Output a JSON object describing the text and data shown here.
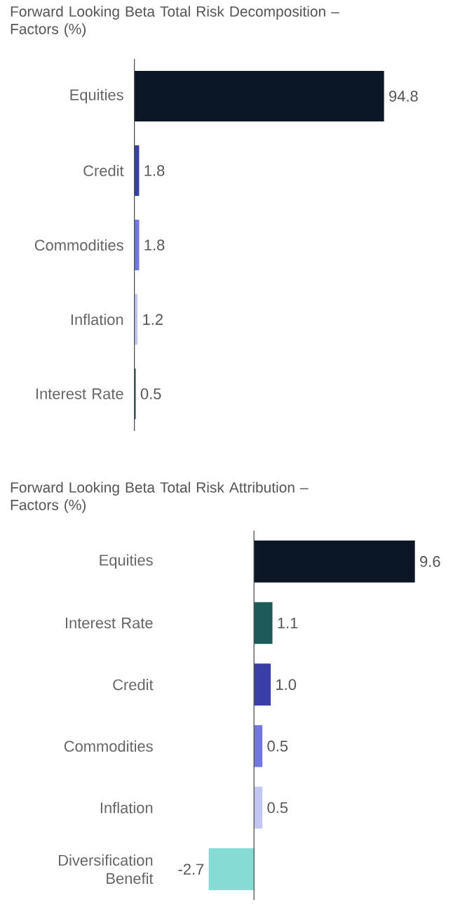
{
  "chart_data": [
    {
      "type": "bar",
      "title": "Forward Looking Beta Total Risk Decomposition – Factors (%)",
      "orientation": "horizontal",
      "tick_labels": "y",
      "value_labels": [
        "94.8",
        "1.8",
        "1.8",
        "1.2",
        "0.5"
      ],
      "categories": [
        "Equities",
        "Credit",
        "Commodities",
        "Inflation",
        "Interest Rate"
      ],
      "values": [
        94.8,
        1.8,
        1.8,
        1.2,
        0.5
      ],
      "colors": [
        "#0b1726",
        "#3a3fa6",
        "#7377e0",
        "#c3c6f3",
        "#1e5a5a"
      ]
    },
    {
      "type": "bar",
      "title": "Forward Looking Beta Total Risk Attribution – Factors (%)",
      "orientation": "horizontal",
      "tick_labels": "y",
      "value_labels": [
        "9.6",
        "1.1",
        "1.0",
        "0.5",
        "0.5",
        "-2.7"
      ],
      "categories": [
        "Equities",
        "Interest Rate",
        "Credit",
        "Commodities",
        "Inflation",
        "Diversification Benefit"
      ],
      "values": [
        9.6,
        1.1,
        1.0,
        0.5,
        0.5,
        -2.7
      ],
      "colors": [
        "#0b1726",
        "#1e5a5a",
        "#3a3fa6",
        "#7377e0",
        "#c3c6f3",
        "#86dcd4"
      ]
    }
  ]
}
